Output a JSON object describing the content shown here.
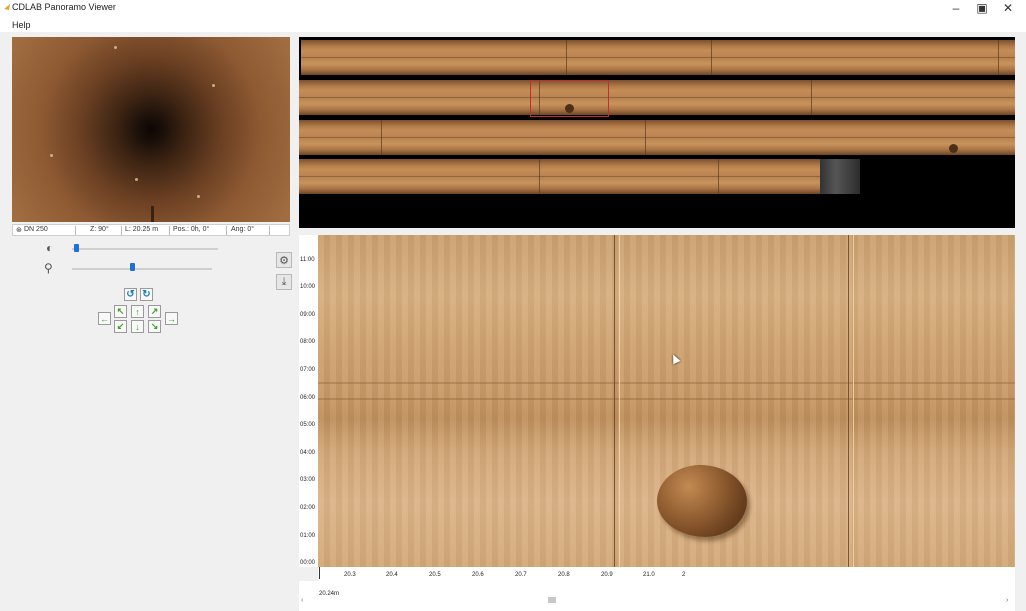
{
  "window": {
    "title": "CDLAB Panoramo Viewer",
    "menu": [
      "Help"
    ],
    "controls": [
      "minimize-icon",
      "restore-icon",
      "close-icon"
    ]
  },
  "preview": {
    "status": {
      "diameter": "DN 250",
      "z": "Z: 90°",
      "length": "L: 20.25 m",
      "position": "Pos.: 0h, 0°",
      "angle": "Ang: 0°"
    }
  },
  "controls": {
    "brightness_level_percent": 2,
    "zoom_level_percent": 42,
    "icons": [
      "brightness-icon",
      "zoom-icon",
      "settings-gear-icon",
      "export-icon"
    ]
  },
  "navigation": {
    "rotate": [
      "rotate-left-icon",
      "rotate-right-icon"
    ],
    "arrows": [
      "up-left-arrow-icon",
      "up-arrow-icon",
      "up-right-arrow-icon",
      "left-arrow-icon",
      "right-arrow-icon",
      "down-left-arrow-icon",
      "down-arrow-icon",
      "down-right-arrow-icon"
    ]
  },
  "detail": {
    "clock_labels": [
      "11:00",
      "10:00",
      "09:00",
      "08:00",
      "07:00",
      "06:00",
      "05:00",
      "04:00",
      "03:00",
      "02:00",
      "01:00",
      "00:00"
    ],
    "distance_ticks": [
      "20.3",
      "20.4",
      "20.5",
      "20.6",
      "20.7",
      "20.8",
      "20.9",
      "21.0",
      "2"
    ],
    "distance_readout": "20.24m"
  }
}
